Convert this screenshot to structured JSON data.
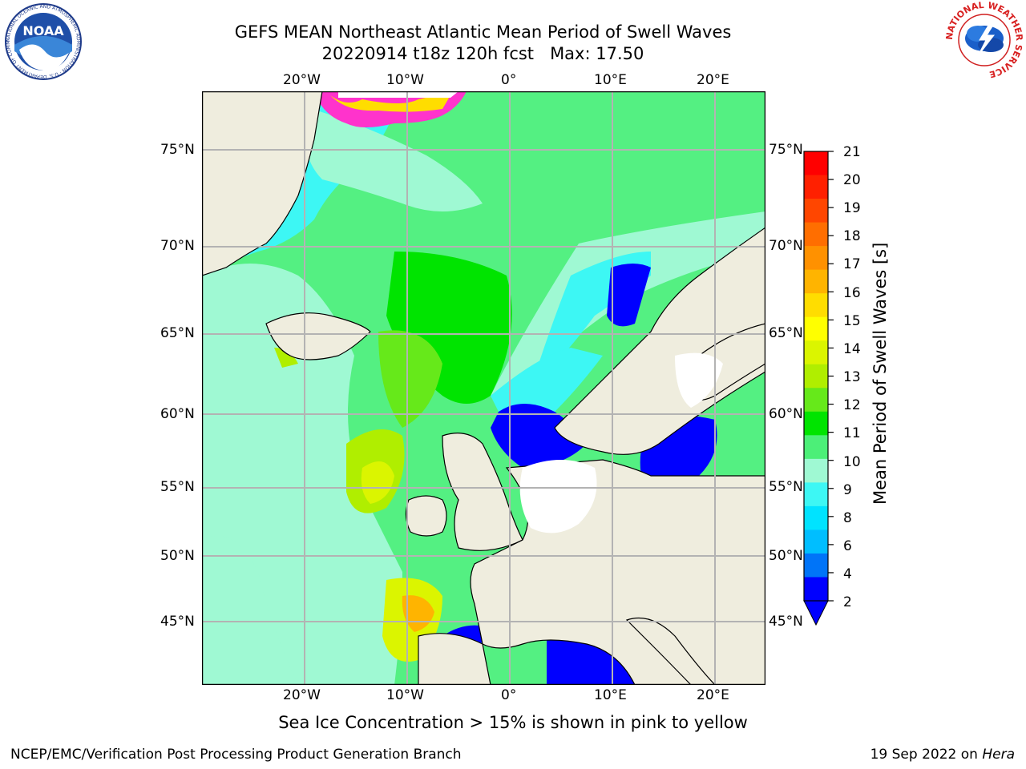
{
  "header": {
    "title_line1": "GEFS MEAN Northeast Atlantic Mean Period of Swell Waves",
    "title_line2": "20220914 t18z 120h fcst   Max: 17.50"
  },
  "map": {
    "lon_labels": [
      "20°W",
      "10°W",
      "0°",
      "10°E",
      "20°E"
    ],
    "lat_labels": [
      "75°N",
      "70°N",
      "65°N",
      "60°N",
      "55°N",
      "50°N",
      "45°N"
    ],
    "land_color": "#efedde",
    "ocean_base_color": "#54f082"
  },
  "colorbar": {
    "label": "Mean Period of Swell Waves [s]",
    "ticks": [
      "21",
      "20",
      "19",
      "18",
      "17",
      "16",
      "15",
      "14",
      "13",
      "12",
      "11",
      "10",
      "9",
      "8",
      "6",
      "4",
      "2"
    ],
    "colors_top_to_bottom": [
      "#ff0000",
      "#ff2000",
      "#ff4600",
      "#ff6e00",
      "#ff9100",
      "#ffb400",
      "#ffdd00",
      "#ffff00",
      "#dbf500",
      "#b0ee00",
      "#66e91a",
      "#00e400",
      "#4cef78",
      "#9ff9d3",
      "#3df7f4",
      "#00e3ff",
      "#00beff",
      "#0074f8",
      "#0000ff"
    ]
  },
  "caption": "Sea Ice Concentration > 15% is shown in pink to yellow",
  "footer": {
    "left": "NCEP/EMC/Verification Post Processing Product Generation Branch",
    "right_date": "19 Sep 2022 on ",
    "right_host": "Hera"
  },
  "logos": {
    "noaa_text": "NOAA",
    "noaa_ring": "NATIONAL OCEANIC AND ATMOSPHERIC ADMINISTRATION · U.S. DEPARTMENT OF COMMERCE",
    "nws_ring": "NATIONAL WEATHER SERVICE"
  }
}
